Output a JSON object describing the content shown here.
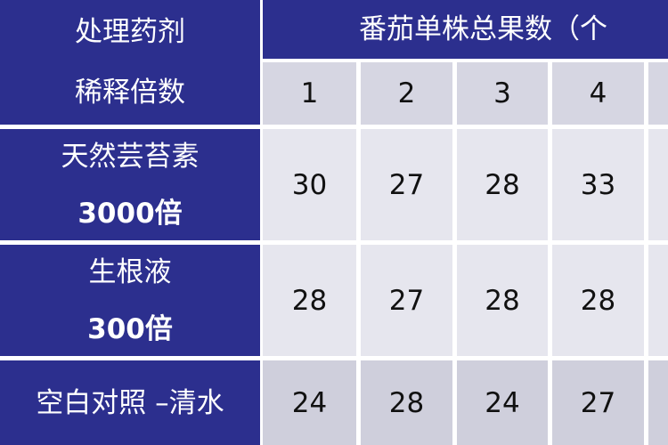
{
  "table": {
    "corner": [
      "处理药剂",
      "稀释倍数"
    ],
    "group_header": "番茄单株总果数（个",
    "columns": [
      "1",
      "2",
      "3",
      "4"
    ],
    "rows": [
      {
        "label": [
          "天然芸苔素",
          "3000倍"
        ],
        "values": [
          30,
          27,
          28,
          33
        ]
      },
      {
        "label": [
          "生根液",
          "300倍"
        ],
        "values": [
          28,
          27,
          28,
          28
        ]
      },
      {
        "label": [
          "空白对照 –清水"
        ],
        "values": [
          24,
          28,
          24,
          27
        ]
      }
    ]
  }
}
